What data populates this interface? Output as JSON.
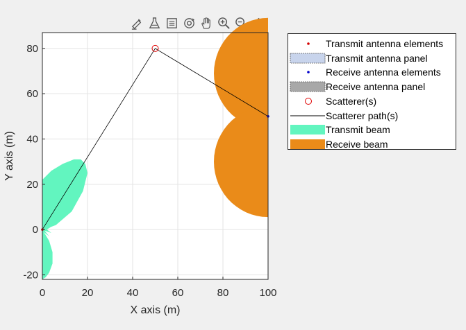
{
  "toolbar": {
    "icons": [
      "brush-annotate-icon",
      "data-tips-icon",
      "legend-toggle-icon",
      "rotate-3d-icon",
      "pan-hand-icon",
      "zoom-in-icon",
      "zoom-out-icon",
      "home-icon"
    ]
  },
  "chart_data": {
    "type": "scatter",
    "title": "",
    "xlabel": "X axis (m)",
    "ylabel": "Y axis (m)",
    "xlim": [
      0,
      100
    ],
    "ylim": [
      -22,
      87
    ],
    "x_ticks": [
      0,
      20,
      40,
      60,
      80,
      100
    ],
    "y_ticks": [
      -20,
      0,
      20,
      40,
      60,
      80
    ],
    "grid": true,
    "legend_position": "outside-right",
    "transmit_antenna": {
      "x": 0,
      "y": 0
    },
    "receive_antenna": {
      "x": 100,
      "y": 50
    },
    "scatterer": {
      "x": 50,
      "y": 80
    },
    "scatterer_path": [
      [
        0,
        0
      ],
      [
        50,
        80
      ],
      [
        100,
        50
      ]
    ],
    "transmit_beam_color": "#62f5bf",
    "receive_beam_color": "#ea8b19",
    "legend": [
      {
        "label": "Transmit antenna elements",
        "symbol": "dot",
        "color": "#d40000"
      },
      {
        "label": "Transmit antenna panel",
        "symbol": "panel",
        "color": "#c8d4ec"
      },
      {
        "label": "Receive antenna elements",
        "symbol": "dot",
        "color": "#0000cc"
      },
      {
        "label": "Receive antenna panel",
        "symbol": "panel",
        "color": "#a8a8a8"
      },
      {
        "label": "Scatterer(s)",
        "symbol": "circle",
        "color": "#e00000"
      },
      {
        "label": "Scatterer path(s)",
        "symbol": "line",
        "color": "#000000"
      },
      {
        "label": "Transmit beam",
        "symbol": "patch",
        "color": "#62f5bf"
      },
      {
        "label": "Receive beam",
        "symbol": "patch",
        "color": "#ea8b19"
      }
    ]
  }
}
